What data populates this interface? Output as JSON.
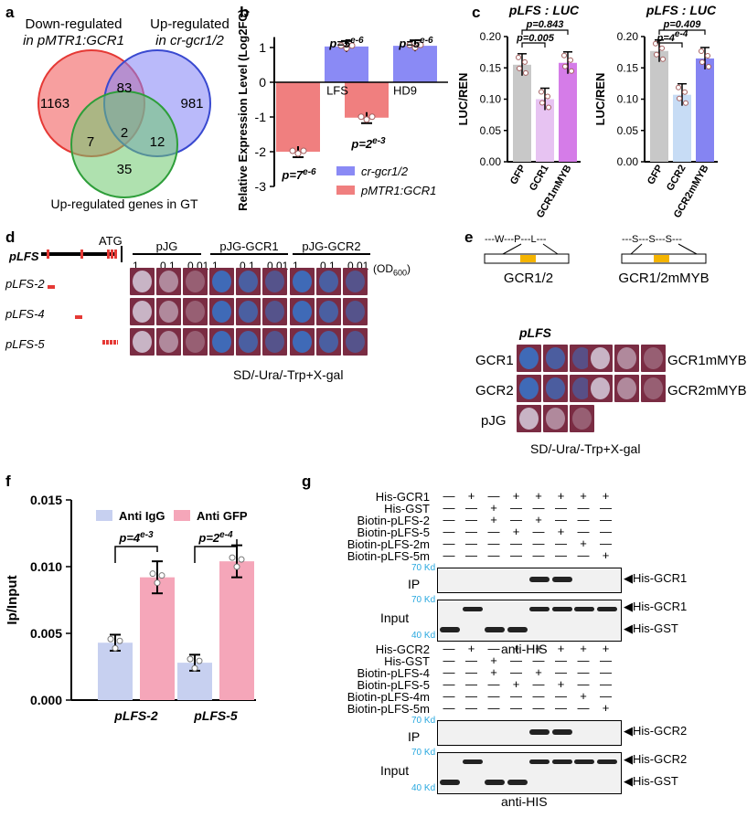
{
  "panels": {
    "a": "a",
    "b": "b",
    "c": "c",
    "d": "d",
    "e": "e",
    "f": "f",
    "g": "g"
  },
  "venn": {
    "down_label_1": "Down-regulated",
    "down_label_2": "in pMTR1:GCR1",
    "up_label_1": "Up-regulated",
    "up_label_2": "in cr-gcr1/2",
    "gt_label": "Up-regulated genes in GT",
    "counts": {
      "red_only": "1163",
      "red_blue": "83",
      "blue_only": "981",
      "center": "2",
      "red_green": "7",
      "blue_green": "12",
      "green_only": "35"
    }
  },
  "panel_b": {
    "ylabel": "Relative Expression Level (Log2FC)",
    "ticks": [
      "1",
      "0",
      "-1",
      "-2",
      "-3"
    ],
    "categories": [
      "LFS",
      "HD9"
    ],
    "pvals": [
      "p=5e-6",
      "p=5e-6",
      "p=7e-6",
      "p=2e-3"
    ],
    "legend": [
      "cr-gcr1/2",
      "pMTR1:GCR1"
    ]
  },
  "panel_c": {
    "title_left": "pLFS : LUC",
    "title_right": "pLFS : LUC",
    "ylabel": "LUC/REN",
    "ticks": [
      "0.20",
      "0.15",
      "0.10",
      "0.05",
      "0.00"
    ],
    "cats_left": [
      "GFP",
      "GCR1",
      "GCR1mMYB"
    ],
    "cats_right": [
      "GFP",
      "GCR2",
      "GCR2mMYB"
    ],
    "p_left": [
      "p=0.843",
      "p=0.005"
    ],
    "p_right": [
      "p=0.409",
      "p=4e-4"
    ]
  },
  "panel_d": {
    "gene": "pLFS",
    "atg": "ATG",
    "rows": [
      "pLFS-2",
      "pLFS-4",
      "pLFS-5"
    ],
    "groups": [
      "pJG",
      "pJG-GCR1",
      "pJG-GCR2"
    ],
    "dilutions": [
      "1",
      "0.1",
      "0.01"
    ],
    "od": "(OD600)",
    "medium": "SD/-Ura/-Trp+X-gal"
  },
  "panel_e": {
    "motif1": "---W---P---L---",
    "motif2": "---S---S---S---",
    "construct1": "GCR1/2",
    "construct2": "GCR1/2mMYB",
    "gene": "pLFS",
    "rows_left": [
      "GCR1",
      "GCR2",
      "pJG"
    ],
    "rows_right": [
      "GCR1mMYB",
      "GCR2mMYB"
    ],
    "medium": "SD/-Ura/-Trp+X-gal"
  },
  "panel_f": {
    "ylabel": "Ip/Input",
    "ticks": [
      "0.015",
      "0.010",
      "0.005",
      "0.000"
    ],
    "legend": [
      "Anti IgG",
      "Anti GFP"
    ],
    "categories": [
      "pLFS-2",
      "pLFS-5"
    ],
    "pvals": [
      "p=4e-3",
      "p=2e-4"
    ]
  },
  "panel_g": {
    "top_rows": [
      "His-GCR1",
      "His-GST",
      "Biotin-pLFS-2",
      "Biotin-pLFS-5",
      "Biotin-pLFS-2m",
      "Biotin-pLFS-5m"
    ],
    "top_signs": [
      [
        "—",
        "+",
        "—",
        "+",
        "+",
        "+",
        "+",
        "+"
      ],
      [
        "—",
        "—",
        "+",
        "—",
        "—",
        "—",
        "—",
        "—"
      ],
      [
        "—",
        "—",
        "+",
        "—",
        "+",
        "—",
        "—",
        "—"
      ],
      [
        "—",
        "—",
        "—",
        "+",
        "—",
        "+",
        "—",
        "—"
      ],
      [
        "—",
        "—",
        "—",
        "—",
        "—",
        "—",
        "+",
        "—"
      ],
      [
        "—",
        "—",
        "—",
        "—",
        "—",
        "—",
        "—",
        "+"
      ]
    ],
    "bottom_rows": [
      "His-GCR2",
      "His-GST",
      "Biotin-pLFS-4",
      "Biotin-pLFS-5",
      "Biotin-pLFS-4m",
      "Biotin-pLFS-5m"
    ],
    "bottom_signs": [
      [
        "—",
        "+",
        "—",
        "+",
        "+",
        "+",
        "+",
        "+"
      ],
      [
        "—",
        "—",
        "+",
        "—",
        "—",
        "—",
        "—",
        "—"
      ],
      [
        "—",
        "—",
        "+",
        "—",
        "+",
        "—",
        "—",
        "—"
      ],
      [
        "—",
        "—",
        "—",
        "+",
        "—",
        "+",
        "—",
        "—"
      ],
      [
        "—",
        "—",
        "—",
        "—",
        "—",
        "—",
        "+",
        "—"
      ],
      [
        "—",
        "—",
        "—",
        "—",
        "—",
        "—",
        "—",
        "+"
      ]
    ],
    "ip": "IP",
    "input": "Input",
    "kd70": "70 Kd",
    "kd40": "40 Kd",
    "his_gcr1": "His-GCR1",
    "his_gcr2": "His-GCR2",
    "his_gst": "His-GST",
    "antibody": "anti-HIS"
  },
  "chart_data": [
    {
      "type": "bar",
      "panel": "b",
      "categories": [
        "LFS",
        "HD9"
      ],
      "series": [
        {
          "name": "cr-gcr1/2",
          "values": [
            1.03,
            1.05
          ]
        },
        {
          "name": "pMTR1:GCR1",
          "values": [
            -2.0,
            -1.02
          ]
        }
      ],
      "ylabel": "Relative Expression Level (Log2FC)",
      "ylim": [
        -3,
        1.5
      ]
    },
    {
      "type": "bar",
      "panel": "c-left",
      "title": "pLFS : LUC",
      "categories": [
        "GFP",
        "GCR1",
        "GCR1mMYB"
      ],
      "values": [
        0.155,
        0.1,
        0.158
      ],
      "ylabel": "LUC/REN",
      "ylim": [
        0,
        0.2
      ]
    },
    {
      "type": "bar",
      "panel": "c-right",
      "title": "pLFS : LUC",
      "categories": [
        "GFP",
        "GCR2",
        "GCR2mMYB"
      ],
      "values": [
        0.177,
        0.107,
        0.165
      ],
      "ylabel": "LUC/REN",
      "ylim": [
        0,
        0.2
      ]
    },
    {
      "type": "bar",
      "panel": "f",
      "categories": [
        "pLFS-2",
        "pLFS-5"
      ],
      "series": [
        {
          "name": "Anti IgG",
          "values": [
            0.0043,
            0.0028
          ]
        },
        {
          "name": "Anti GFP",
          "values": [
            0.0092,
            0.0104
          ]
        }
      ],
      "ylabel": "Ip/Input",
      "ylim": [
        0,
        0.015
      ]
    }
  ]
}
